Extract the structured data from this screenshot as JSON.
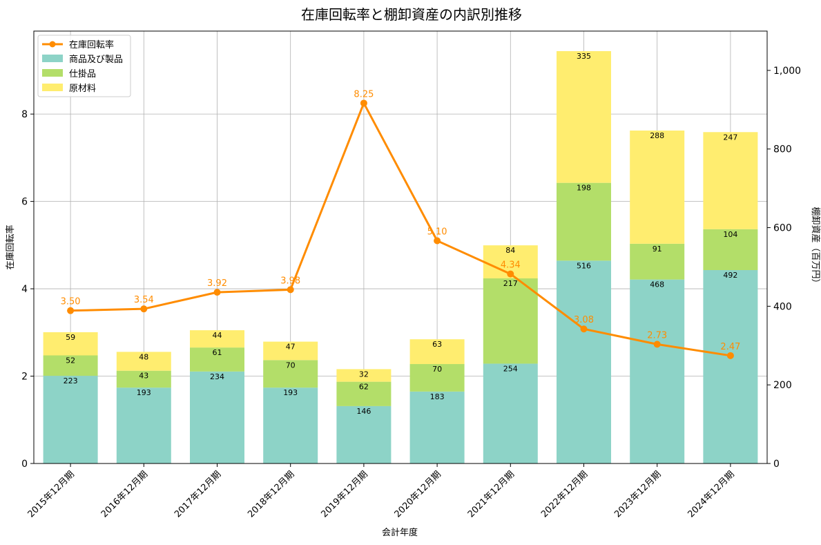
{
  "chart_data": {
    "type": "bar",
    "title": "在庫回転率と棚卸資産の内訳別推移",
    "xlabel": "会計年度",
    "ylabel_left": "在庫回転率",
    "ylabel_right": "棚卸資産（百万円）",
    "categories": [
      "2015年12月期",
      "2016年12月期",
      "2017年12月期",
      "2018年12月期",
      "2019年12月期",
      "2020年12月期",
      "2021年12月期",
      "2022年12月期",
      "2023年12月期",
      "2024年12月期"
    ],
    "stacked_series": [
      {
        "name": "商品及び製品",
        "color": "#8dd3c7",
        "values": [
          223,
          193,
          234,
          193,
          146,
          183,
          254,
          516,
          468,
          492
        ]
      },
      {
        "name": "仕掛品",
        "color": "#b3de69",
        "values": [
          52,
          43,
          61,
          70,
          62,
          70,
          217,
          198,
          91,
          104
        ]
      },
      {
        "name": "原材料",
        "color": "#ffed6f",
        "values": [
          59,
          48,
          44,
          47,
          32,
          63,
          84,
          335,
          288,
          247
        ]
      }
    ],
    "line_series": {
      "name": "在庫回転率",
      "color": "#ff8c00",
      "values": [
        3.5,
        3.54,
        3.92,
        3.98,
        8.25,
        5.1,
        4.34,
        3.08,
        2.73,
        2.47
      ],
      "labels": [
        "3.50",
        "3.54",
        "3.92",
        "3.98",
        "8.25",
        "5.10",
        "4.34",
        "3.08",
        "2.73",
        "2.47"
      ]
    },
    "ylim_left": [
      0,
      9.9
    ],
    "ylim_right": [
      0,
      1100
    ],
    "left_ticks": [
      0,
      2,
      4,
      6,
      8
    ],
    "left_tick_labels": [
      "0",
      "2",
      "4",
      "6",
      "8"
    ],
    "right_ticks": [
      0,
      200,
      400,
      600,
      800,
      1000
    ],
    "right_tick_labels": [
      "0",
      "200",
      "400",
      "600",
      "800",
      "1,000"
    ],
    "grid": true,
    "legend_position": "top-left"
  }
}
